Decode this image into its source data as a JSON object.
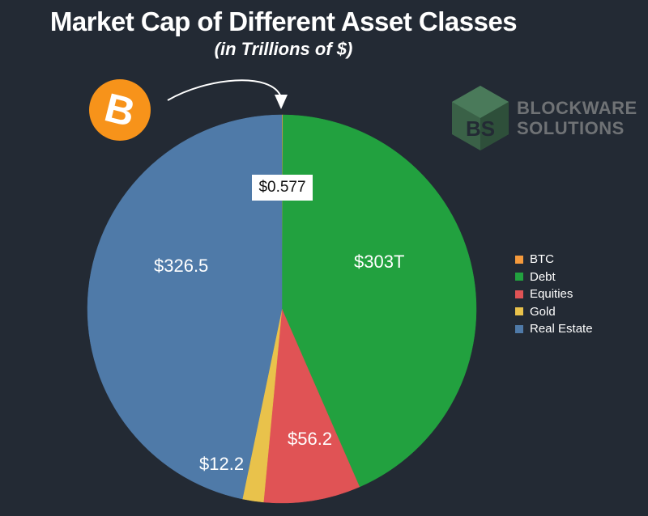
{
  "header": {
    "title": "Market Cap of Different Asset Classes",
    "subtitle": "(in Trillions of $)"
  },
  "brand": {
    "line1": "BLOCKWARE",
    "line2": "SOLUTIONS",
    "mark_color": "#3a6147",
    "text_color": "#6f7275"
  },
  "bitcoin_logo": {
    "icon": "bitcoin-icon",
    "glyph": "B",
    "color": "#f7931a"
  },
  "chart_data": {
    "type": "pie",
    "title": "Market Cap of Different Asset Classes",
    "subtitle": "(in Trillions of $)",
    "categories": [
      "BTC",
      "Debt",
      "Equities",
      "Gold",
      "Real Estate"
    ],
    "values": [
      0.577,
      303,
      56.2,
      12.2,
      326.5
    ],
    "data_labels": [
      "$0.577",
      "$303T",
      "$56.2",
      "$12.2",
      "$326.5"
    ],
    "colors": [
      "#f59a3c",
      "#22a13f",
      "#e05355",
      "#e9c24b",
      "#4f7aa8"
    ],
    "legend": "right",
    "start_angle": "12 o'clock",
    "direction": "clockwise"
  }
}
